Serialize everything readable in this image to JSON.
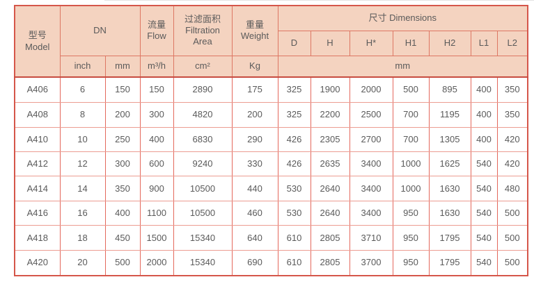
{
  "colors": {
    "header_fill": "#f4d3c0",
    "outer_border": "#d5564a",
    "inner_border_vertical": "#e4685c",
    "inner_border_horizontal": "#ec9c91",
    "header_divider": "#c74c40",
    "text": "#5a5a5a"
  },
  "table": {
    "header": {
      "model_zh": "型号",
      "model_en": "Model",
      "dn": "DN",
      "flow_zh": "流量",
      "flow_en": "Flow",
      "filtration_zh": "过滤面积",
      "filtration_en": "Filtration Area",
      "weight_zh": "重量",
      "weight_en": "Weight",
      "dimensions": "尺寸 Dimensions",
      "dim_cols": [
        "D",
        "H",
        "H*",
        "H1",
        "H2",
        "L1",
        "L2"
      ],
      "units": {
        "inch": "inch",
        "mm": "mm",
        "flow": "m³/h",
        "area": "cm²",
        "weight": "Kg",
        "dim_mm": "mm"
      }
    },
    "col_keys": [
      "model",
      "inch",
      "mm",
      "flow",
      "area",
      "weight",
      "d",
      "h",
      "h-star",
      "h1",
      "h2",
      "l1",
      "l2"
    ],
    "rows": [
      [
        "A406",
        "6",
        "150",
        "150",
        "2890",
        "175",
        "325",
        "1900",
        "2000",
        "500",
        "895",
        "400",
        "350"
      ],
      [
        "A408",
        "8",
        "200",
        "300",
        "4820",
        "200",
        "325",
        "2200",
        "2500",
        "700",
        "1195",
        "400",
        "350"
      ],
      [
        "A410",
        "10",
        "250",
        "400",
        "6830",
        "290",
        "426",
        "2305",
        "2700",
        "700",
        "1305",
        "400",
        "420"
      ],
      [
        "A412",
        "12",
        "300",
        "600",
        "9240",
        "330",
        "426",
        "2635",
        "3400",
        "1000",
        "1625",
        "540",
        "420"
      ],
      [
        "A414",
        "14",
        "350",
        "900",
        "10500",
        "440",
        "530",
        "2640",
        "3400",
        "1000",
        "1630",
        "540",
        "480"
      ],
      [
        "A416",
        "16",
        "400",
        "1100",
        "10500",
        "460",
        "530",
        "2640",
        "3400",
        "950",
        "1630",
        "540",
        "500"
      ],
      [
        "A418",
        "18",
        "450",
        "1500",
        "15340",
        "640",
        "610",
        "2805",
        "3710",
        "950",
        "1795",
        "540",
        "500"
      ],
      [
        "A420",
        "20",
        "500",
        "2000",
        "15340",
        "690",
        "610",
        "2805",
        "3700",
        "950",
        "1795",
        "540",
        "500"
      ]
    ]
  }
}
